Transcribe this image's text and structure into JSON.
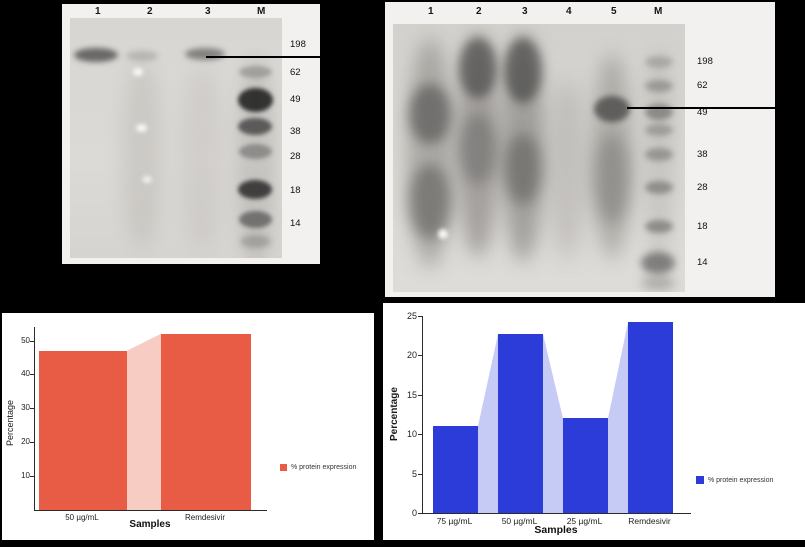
{
  "figure": {
    "background": "#000000",
    "description": "Western blot panels with molecular weight markers and bar charts of protein expression"
  },
  "blots": [
    {
      "name": "western-blot-left",
      "lane_labels": [
        "1",
        "2",
        "3",
        "M"
      ],
      "marker_labels": [
        "198",
        "62",
        "49",
        "38",
        "28",
        "18",
        "14"
      ]
    },
    {
      "name": "western-blot-right",
      "lane_labels": [
        "1",
        "2",
        "3",
        "4",
        "5",
        "M"
      ],
      "marker_labels": [
        "198",
        "62",
        "49",
        "38",
        "28",
        "18",
        "14"
      ]
    }
  ],
  "chart_data": [
    {
      "type": "bar",
      "title": "",
      "categories": [
        "50 µg/mL",
        "Remdesivir"
      ],
      "values": [
        47,
        52
      ],
      "xlabel": "Samples",
      "ylabel": "Percentage",
      "ylim": [
        0,
        54
      ],
      "yticks": [
        10,
        20,
        30,
        40,
        50
      ],
      "grid": false,
      "legend_label": "% protein expression",
      "legend_position": "right",
      "bar_color": "#e85b45",
      "area_color": "#f6ccc3"
    },
    {
      "type": "bar",
      "title": "",
      "categories": [
        "75 µg/mL",
        "50 µg/mL",
        "25 µg/mL",
        "Remdesivir"
      ],
      "values": [
        11,
        22.7,
        12,
        24.2
      ],
      "xlabel": "Samples",
      "ylabel": "Percentage",
      "ylim": [
        0,
        25
      ],
      "yticks": [
        0,
        5,
        10,
        15,
        20,
        25
      ],
      "grid": false,
      "legend_label": "% protein expression",
      "legend_position": "right",
      "bar_color": "#2b3cd9",
      "area_color": "#c6cbf6"
    }
  ]
}
